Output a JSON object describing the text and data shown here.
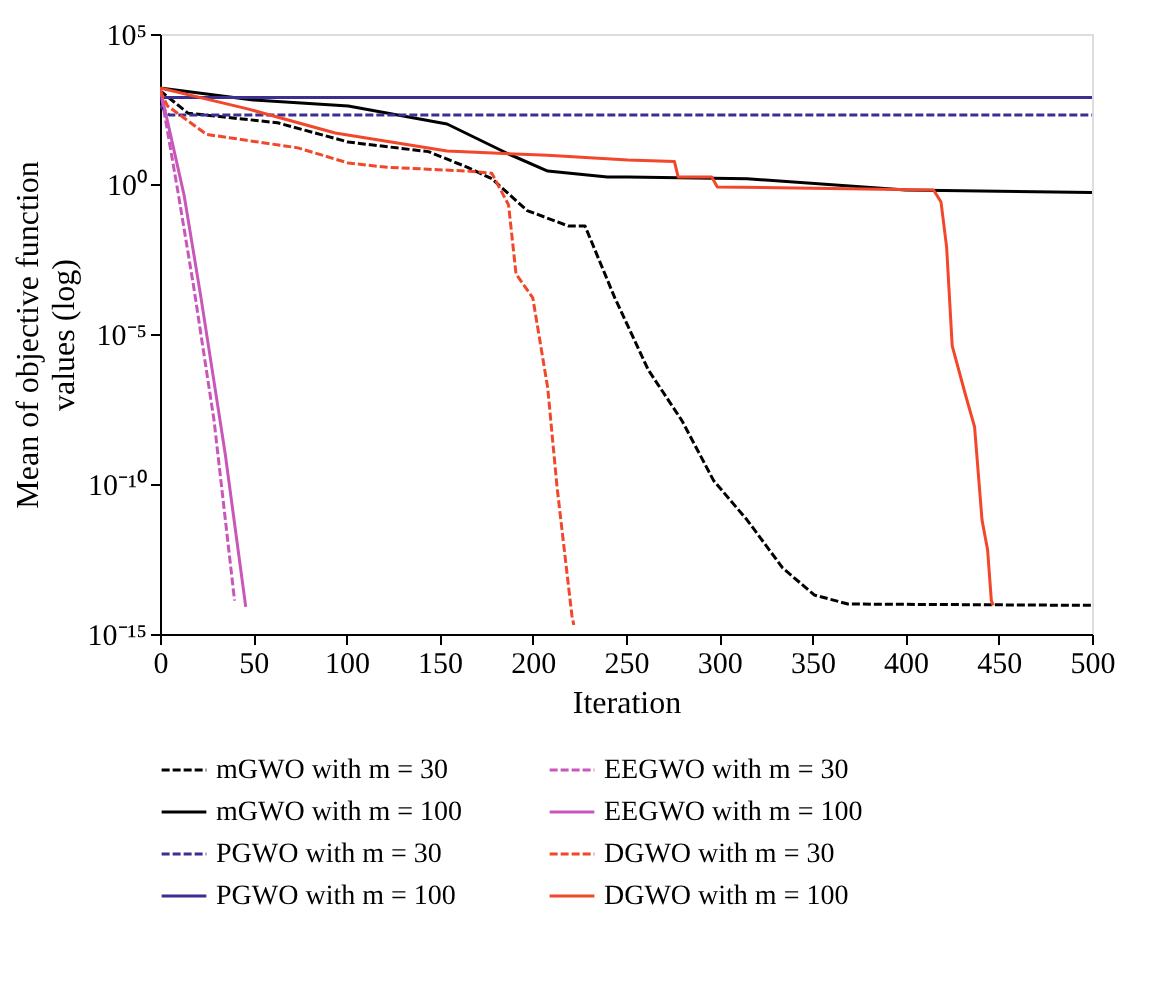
{
  "chart_data": {
    "type": "line",
    "xlabel": "Iteration",
    "ylabel": "Mean of objective function values (log)",
    "log": "y",
    "xlim": [
      0,
      500
    ],
    "xticks": [
      0,
      50,
      100,
      150,
      200,
      250,
      300,
      350,
      400,
      450,
      500
    ],
    "ylim": [
      1e-15,
      100000.0
    ],
    "yticks": [
      {
        "value": 1e-15,
        "label": "10⁻¹⁵"
      },
      {
        "value": 1e-10,
        "label": "10⁻¹⁰"
      },
      {
        "value": 1e-05,
        "label": "10⁻⁵"
      },
      {
        "value": 1,
        "label": "10⁰"
      },
      {
        "value": 100000.0,
        "label": "10⁵"
      }
    ],
    "grid": false,
    "legend": "bottom",
    "marker": "none",
    "series": [
      {
        "name": "mGWO with m = 30",
        "color": "#000000",
        "line_style": "dashed",
        "x": [
          0,
          15,
          63,
          101,
          144,
          165,
          178,
          197,
          219,
          228,
          244,
          262,
          280,
          297,
          315,
          334,
          351,
          369,
          500
        ],
        "values": [
          1300,
          230,
          110,
          25,
          12,
          3.6,
          1.5,
          0.13,
          0.04,
          0.04,
          0.00016,
          6.3e-07,
          1.3e-08,
          1.3e-10,
          6.3e-12,
          1.6e-13,
          2e-14,
          1e-14,
          9e-15
        ]
      },
      {
        "name": "mGWO with m = 100",
        "color": "#000000",
        "line_style": "solid",
        "x": [
          0,
          50,
          101,
          154,
          187,
          208,
          240,
          251,
          315,
          400,
          500
        ],
        "values": [
          1600,
          630,
          400,
          100,
          10,
          2.7,
          1.7,
          1.7,
          1.5,
          0.63,
          0.52
        ]
      },
      {
        "name": "PGWO with m = 30",
        "color": "#3b2f91",
        "line_style": "dashed",
        "x": [
          0,
          5,
          500
        ],
        "values": [
          400,
          200,
          200
        ]
      },
      {
        "name": "PGWO with m = 100",
        "color": "#3b2f91",
        "line_style": "solid",
        "x": [
          0,
          500
        ],
        "values": [
          760,
          760
        ]
      },
      {
        "name": "EEGWO with m = 30",
        "color": "#c957b9",
        "line_style": "dashed",
        "x": [
          0,
          10,
          18,
          29,
          40
        ],
        "values": [
          1600,
          0.4,
          0.0004,
          1.3e-08,
          1.3e-14
        ]
      },
      {
        "name": "EEGWO with m = 100",
        "color": "#c957b9",
        "line_style": "solid",
        "x": [
          0,
          13,
          22,
          35,
          46
        ],
        "values": [
          1600,
          0.4,
          0.00016,
          1e-09,
          8e-15
        ]
      },
      {
        "name": "DGWO with m = 30",
        "color": "#f2472a",
        "line_style": "dashed",
        "x": [
          0,
          4,
          25,
          74,
          101,
          122,
          165,
          178,
          187,
          191,
          200,
          208,
          213,
          221,
          222
        ],
        "values": [
          1300,
          400,
          45,
          16,
          5,
          3.6,
          2.7,
          2.3,
          0.2,
          0.001,
          0.00016,
          1.6e-07,
          8e-11,
          4e-15,
          2e-15
        ]
      },
      {
        "name": "DGWO with m = 100",
        "color": "#f2472a",
        "line_style": "solid",
        "x": [
          0,
          47,
          94,
          154,
          208,
          251,
          276,
          278,
          296,
          299,
          415,
          419,
          422,
          425,
          432,
          437,
          441,
          444,
          446,
          447
        ],
        "values": [
          1600,
          320,
          50,
          12.6,
          9,
          6.3,
          5.6,
          1.7,
          1.7,
          0.8,
          0.63,
          0.25,
          0.008,
          4e-06,
          1e-07,
          8e-09,
          6.3e-12,
          6.3e-13,
          1.3e-14,
          9e-15
        ]
      }
    ]
  }
}
